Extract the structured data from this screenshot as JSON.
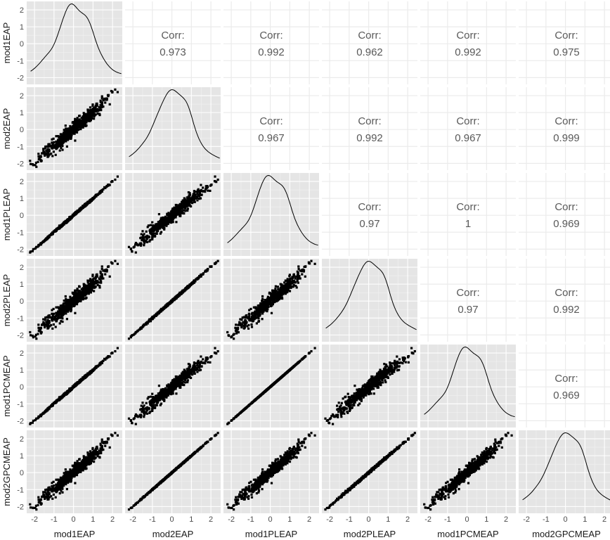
{
  "chart_data": {
    "type": "scatter-matrix",
    "variables": [
      "mod1EAP",
      "mod2EAP",
      "mod1PLEAP",
      "mod2PLEAP",
      "mod1PCMEAP",
      "mod2GPCMEAP"
    ],
    "axis_range": [
      -2.4,
      2.5
    ],
    "ticks": [
      -2,
      -1,
      0,
      1,
      2
    ],
    "corr_label": "Corr:",
    "correlations": [
      {
        "row": "mod1EAP",
        "col": "mod2EAP",
        "value": "0.973"
      },
      {
        "row": "mod1EAP",
        "col": "mod1PLEAP",
        "value": "0.992"
      },
      {
        "row": "mod1EAP",
        "col": "mod2PLEAP",
        "value": "0.962"
      },
      {
        "row": "mod1EAP",
        "col": "mod1PCMEAP",
        "value": "0.992"
      },
      {
        "row": "mod1EAP",
        "col": "mod2GPCMEAP",
        "value": "0.975"
      },
      {
        "row": "mod2EAP",
        "col": "mod1PLEAP",
        "value": "0.967"
      },
      {
        "row": "mod2EAP",
        "col": "mod2PLEAP",
        "value": "0.992"
      },
      {
        "row": "mod2EAP",
        "col": "mod1PCMEAP",
        "value": "0.967"
      },
      {
        "row": "mod2EAP",
        "col": "mod2GPCMEAP",
        "value": "0.999"
      },
      {
        "row": "mod1PLEAP",
        "col": "mod2PLEAP",
        "value": "0.97"
      },
      {
        "row": "mod1PLEAP",
        "col": "mod1PCMEAP",
        "value": "1"
      },
      {
        "row": "mod1PLEAP",
        "col": "mod2GPCMEAP",
        "value": "0.969"
      },
      {
        "row": "mod2PLEAP",
        "col": "mod1PCMEAP",
        "value": "0.97"
      },
      {
        "row": "mod2PLEAP",
        "col": "mod2GPCMEAP",
        "value": "0.992"
      },
      {
        "row": "mod1PCMEAP",
        "col": "mod2GPCMEAP",
        "value": "0.969"
      }
    ],
    "diagonal": "density",
    "lower": "scatter",
    "grid": true,
    "colors": {
      "panel": "#e5e5e5",
      "grid": "#ffffff",
      "points": "#000000",
      "corr_text": "#595959",
      "upper_grid": "#ebebeb"
    }
  }
}
